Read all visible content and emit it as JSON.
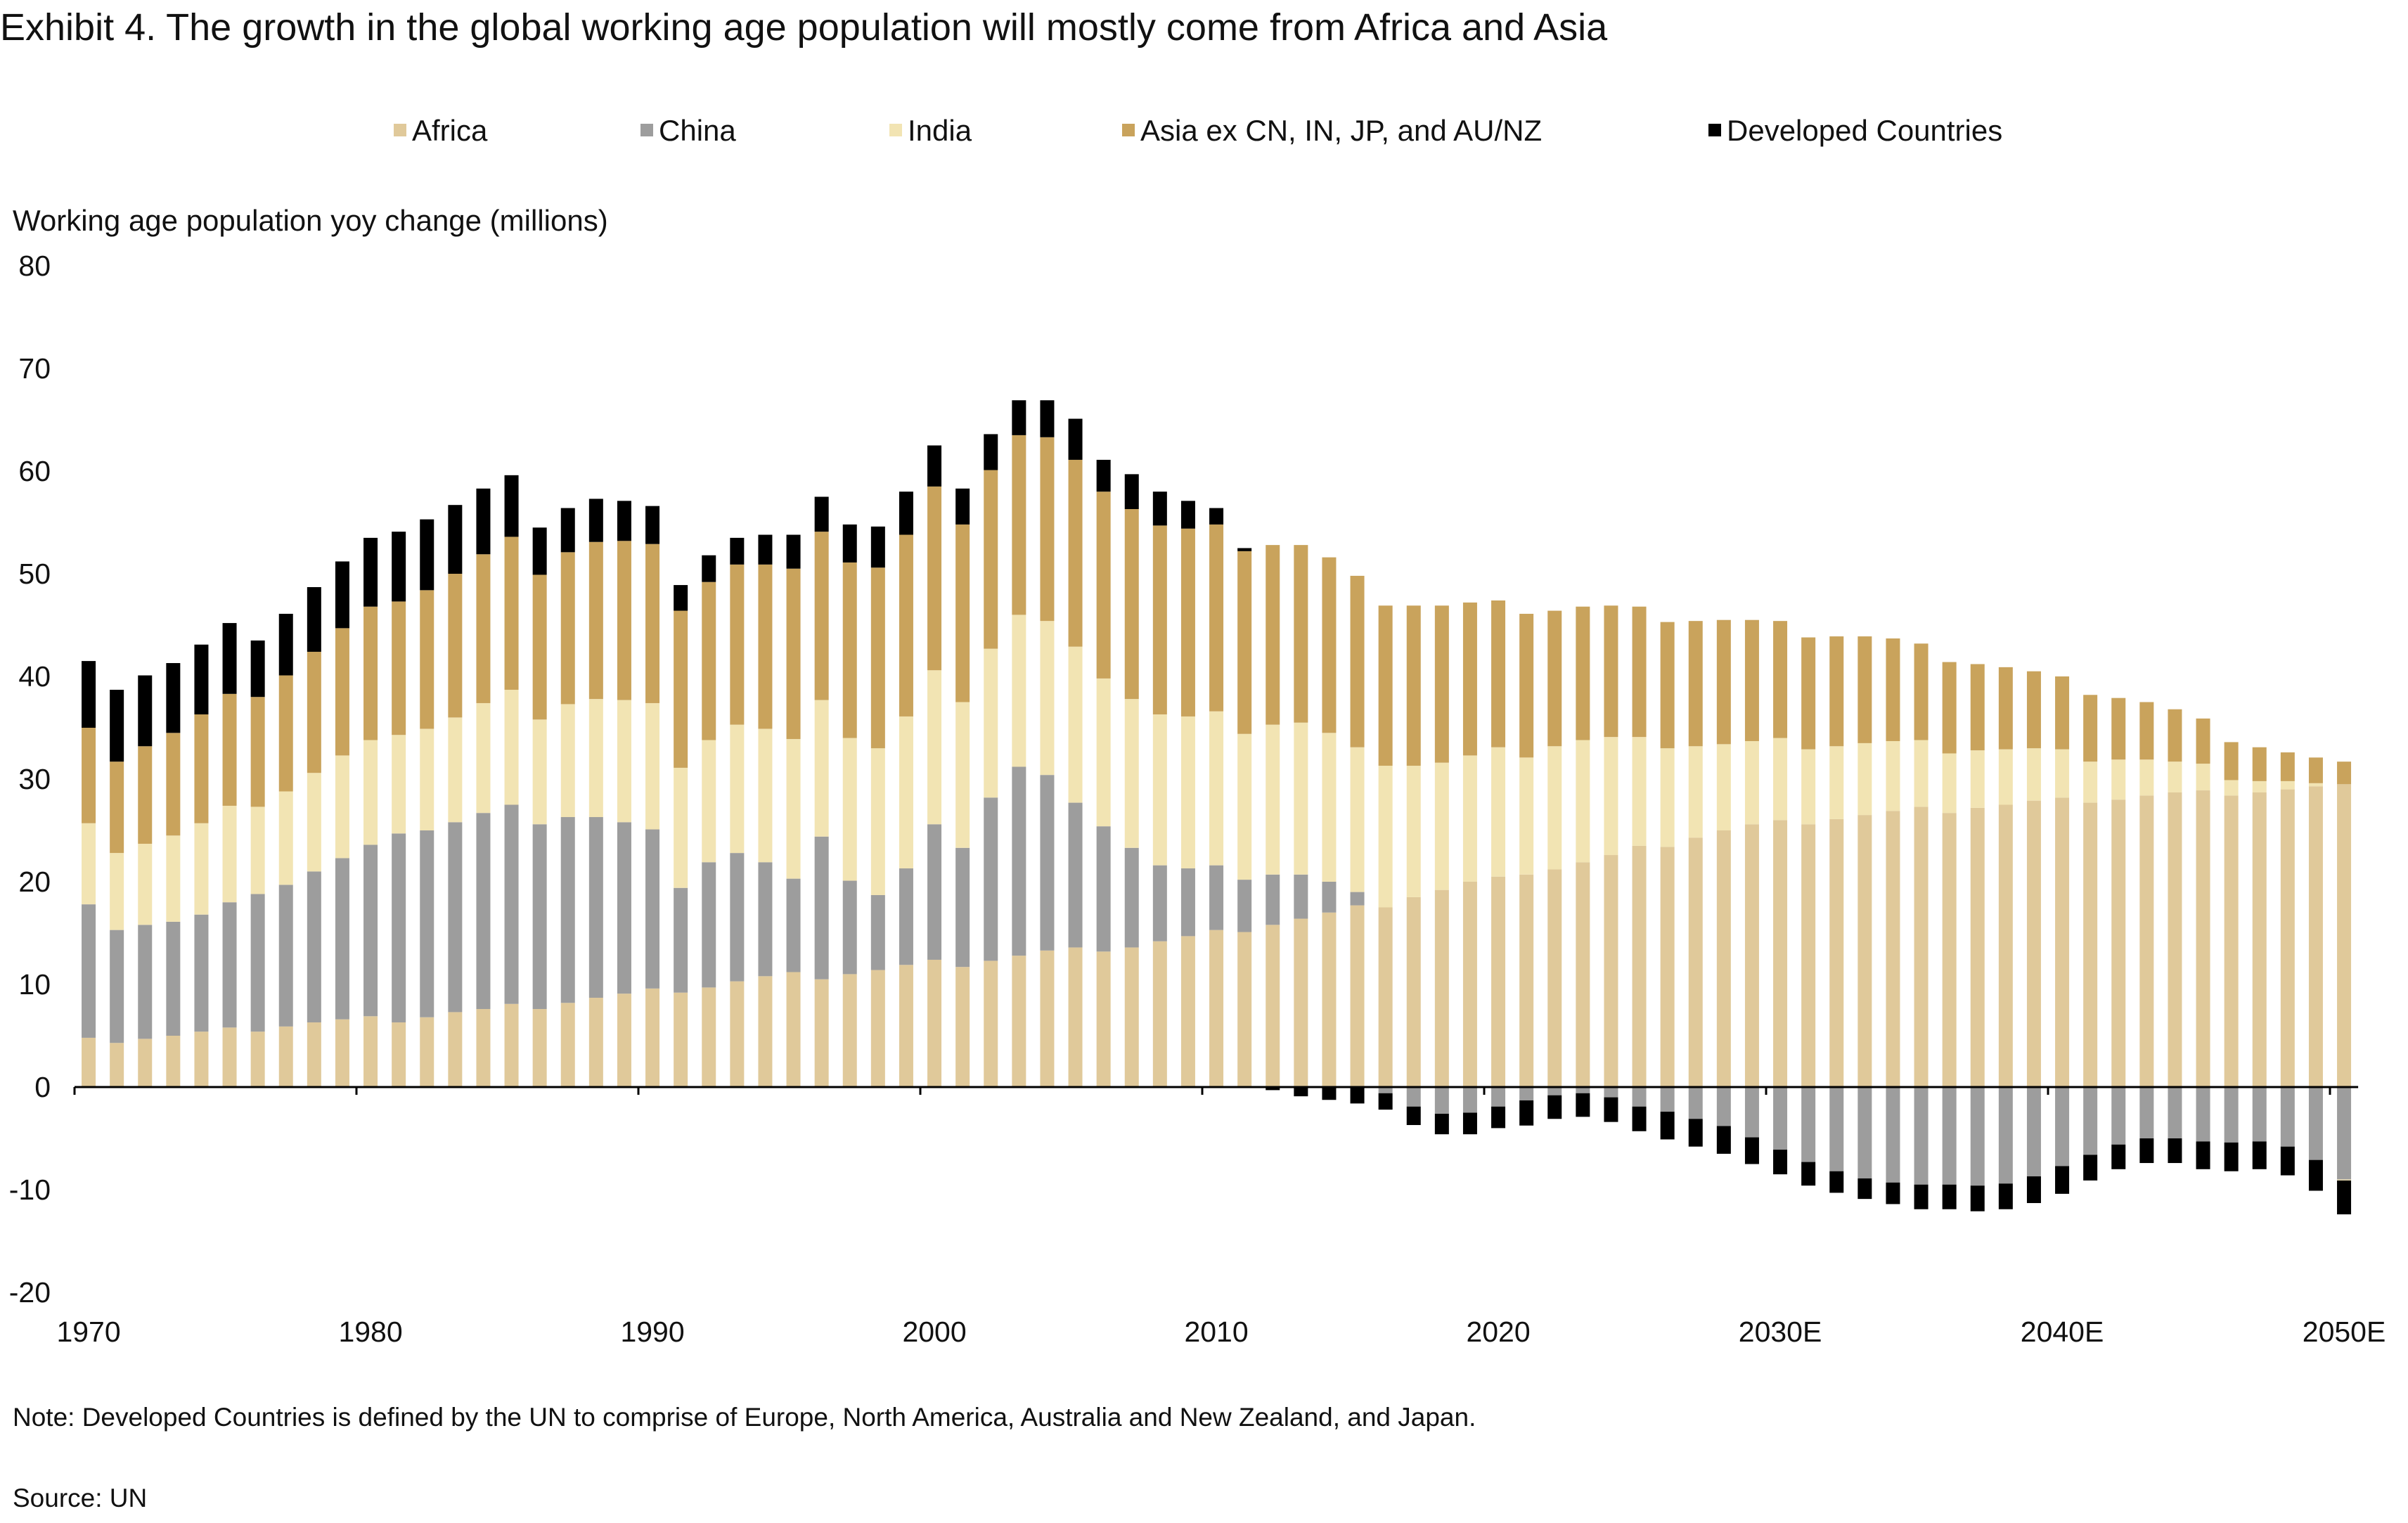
{
  "title": "Exhibit 4. The growth in the global working age population will mostly come from Africa and Asia",
  "note": "Note: Developed Countries is defined by the UN to comprise of Europe, North America, Australia and New Zealand, and Japan.",
  "source": "Source: UN",
  "chart_data": {
    "type": "bar",
    "stacked": true,
    "title": "Exhibit 4. The growth in the global working age population will mostly come from Africa and Asia",
    "ylabel": "Working age population yoy change (millions)",
    "xlabel": "",
    "ylim": [
      -20,
      80
    ],
    "yticks": [
      80,
      70,
      60,
      50,
      40,
      30,
      20,
      10,
      0,
      -10,
      -20
    ],
    "xtick_labels": [
      "1970",
      "1980",
      "1990",
      "2000",
      "2010",
      "2020",
      "2030E",
      "2040E",
      "2050E"
    ],
    "grid": false,
    "legend_position": "top",
    "categories": [
      1970,
      1971,
      1972,
      1973,
      1974,
      1975,
      1976,
      1977,
      1978,
      1979,
      1980,
      1981,
      1982,
      1983,
      1984,
      1985,
      1986,
      1987,
      1988,
      1989,
      1990,
      1991,
      1992,
      1993,
      1994,
      1995,
      1996,
      1997,
      1998,
      1999,
      2000,
      2001,
      2002,
      2003,
      2004,
      2005,
      2006,
      2007,
      2008,
      2009,
      2010,
      2011,
      2012,
      2013,
      2014,
      2015,
      2016,
      2017,
      2018,
      2019,
      2020,
      2021,
      2022,
      2023,
      2024,
      2025,
      2026,
      2027,
      2028,
      2029,
      2030,
      2031,
      2032,
      2033,
      2034,
      2035,
      2036,
      2037,
      2038,
      2039,
      2040,
      2041,
      2042,
      2043,
      2044,
      2045,
      2046,
      2047,
      2048,
      2049,
      2050
    ],
    "series": [
      {
        "name": "Africa",
        "color": "#e0c99a",
        "values": [
          4.8,
          4.3,
          4.7,
          5.0,
          5.4,
          5.8,
          5.4,
          5.9,
          6.3,
          6.6,
          6.9,
          6.3,
          6.8,
          7.3,
          7.6,
          8.1,
          7.6,
          8.2,
          8.7,
          9.1,
          9.6,
          9.2,
          9.7,
          10.3,
          10.8,
          11.2,
          10.5,
          11.0,
          11.4,
          11.9,
          12.4,
          11.7,
          12.3,
          12.8,
          13.3,
          13.6,
          13.2,
          13.6,
          14.2,
          14.7,
          15.3,
          15.1,
          15.8,
          16.4,
          17.0,
          17.7,
          17.5,
          18.5,
          19.2,
          20.0,
          20.5,
          20.7,
          21.2,
          21.9,
          22.6,
          23.5,
          23.4,
          24.3,
          25.0,
          25.6,
          26.0,
          25.6,
          26.1,
          26.5,
          26.9,
          27.3,
          26.7,
          27.2,
          27.5,
          27.9,
          28.2,
          27.7,
          28.0,
          28.4,
          28.7,
          28.9,
          28.4,
          28.7,
          29.0,
          29.3,
          29.5
        ]
      },
      {
        "name": "China",
        "color": "#9d9d9d",
        "values": [
          13.0,
          11.0,
          11.1,
          11.1,
          11.4,
          12.2,
          13.4,
          13.8,
          14.7,
          15.7,
          16.7,
          18.4,
          18.2,
          18.5,
          19.1,
          19.4,
          18.0,
          18.1,
          17.6,
          16.7,
          15.5,
          10.2,
          12.2,
          12.5,
          11.1,
          9.1,
          13.9,
          9.1,
          7.3,
          9.4,
          13.2,
          11.6,
          15.9,
          18.4,
          17.1,
          14.1,
          12.2,
          9.7,
          7.4,
          6.6,
          6.3,
          5.1,
          4.9,
          4.3,
          3.0,
          1.3,
          -0.6,
          -1.9,
          -2.6,
          -2.5,
          -1.9,
          -1.3,
          -0.8,
          -0.6,
          -1.0,
          -1.9,
          -2.4,
          -3.1,
          -3.8,
          -4.9,
          -6.1,
          -7.3,
          -8.2,
          -8.9,
          -9.3,
          -9.5,
          -9.5,
          -9.6,
          -9.4,
          -8.7,
          -7.7,
          -6.6,
          -5.6,
          -5.0,
          -5.0,
          -5.3,
          -5.4,
          -5.3,
          -5.8,
          -7.1,
          -9.0
        ]
      },
      {
        "name": "India",
        "color": "#f2e4b3",
        "values": [
          7.9,
          7.5,
          7.9,
          8.4,
          8.9,
          9.4,
          8.5,
          9.1,
          9.6,
          10.0,
          10.2,
          9.6,
          9.9,
          10.2,
          10.7,
          11.2,
          10.2,
          11.0,
          11.5,
          11.9,
          12.3,
          11.7,
          11.9,
          12.5,
          13.0,
          13.6,
          13.3,
          13.9,
          14.3,
          14.8,
          15.0,
          14.2,
          14.5,
          14.8,
          15.0,
          15.2,
          14.4,
          14.5,
          14.7,
          14.8,
          15.0,
          14.2,
          14.6,
          14.8,
          14.5,
          14.1,
          13.8,
          12.8,
          12.4,
          12.3,
          12.6,
          11.4,
          12.0,
          11.9,
          11.5,
          10.6,
          9.6,
          8.9,
          8.4,
          8.1,
          8.0,
          7.3,
          7.1,
          7.0,
          6.8,
          6.5,
          5.8,
          5.6,
          5.4,
          5.1,
          4.7,
          4.0,
          3.9,
          3.5,
          3.0,
          2.6,
          1.5,
          1.1,
          0.8,
          0.3,
          -0.1
        ]
      },
      {
        "name": "Asia ex CN, IN, JP, and AU/NZ",
        "color": "#c9a35c",
        "values": [
          9.3,
          8.9,
          9.5,
          10.0,
          10.6,
          10.9,
          10.7,
          11.3,
          11.8,
          12.4,
          13.0,
          13.0,
          13.5,
          14.0,
          14.5,
          14.9,
          14.1,
          14.8,
          15.3,
          15.5,
          15.5,
          15.3,
          15.4,
          15.6,
          16.0,
          16.6,
          16.4,
          17.1,
          17.6,
          17.7,
          17.9,
          17.3,
          17.4,
          17.5,
          17.9,
          18.2,
          18.2,
          18.5,
          18.4,
          18.3,
          18.2,
          17.8,
          17.5,
          17.3,
          17.1,
          16.7,
          15.6,
          15.6,
          15.3,
          14.9,
          14.3,
          14.0,
          13.2,
          13.0,
          12.8,
          12.7,
          12.3,
          12.2,
          12.1,
          11.8,
          11.4,
          10.9,
          10.7,
          10.4,
          10.0,
          9.4,
          8.9,
          8.4,
          8.0,
          7.5,
          7.1,
          6.5,
          6.0,
          5.6,
          5.1,
          4.4,
          3.7,
          3.3,
          2.8,
          2.5,
          2.2
        ]
      },
      {
        "name": "Developed Countries",
        "color": "#000000",
        "values": [
          6.5,
          7.0,
          6.9,
          6.8,
          6.8,
          6.9,
          5.5,
          6.0,
          6.3,
          6.5,
          6.7,
          6.8,
          6.9,
          6.7,
          6.4,
          6.0,
          4.6,
          4.3,
          4.2,
          3.9,
          3.7,
          2.5,
          2.6,
          2.6,
          2.9,
          3.3,
          3.4,
          3.7,
          4.0,
          4.2,
          4.0,
          3.5,
          3.5,
          3.4,
          3.6,
          4.0,
          3.1,
          3.4,
          3.3,
          2.7,
          1.6,
          0.3,
          -0.3,
          -0.9,
          -1.25,
          -1.6,
          -1.6,
          -1.8,
          -2.0,
          -2.1,
          -2.1,
          -2.45,
          -2.3,
          -2.3,
          -2.4,
          -2.4,
          -2.7,
          -2.7,
          -2.7,
          -2.6,
          -2.4,
          -2.3,
          -2.1,
          -2.0,
          -2.1,
          -2.4,
          -2.4,
          -2.5,
          -2.5,
          -2.6,
          -2.7,
          -2.5,
          -2.4,
          -2.4,
          -2.4,
          -2.7,
          -2.8,
          -2.7,
          -2.8,
          -3.0,
          -3.3
        ]
      }
    ]
  }
}
